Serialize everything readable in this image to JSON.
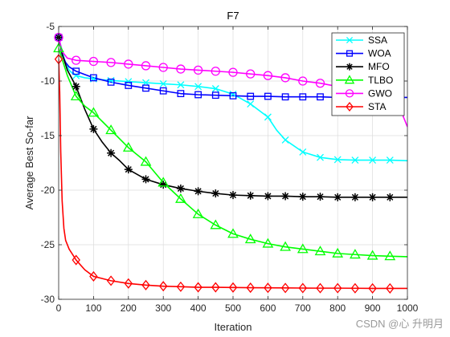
{
  "chart_data": {
    "type": "line",
    "title": "F7",
    "xlabel": "Iteration",
    "ylabel": "Average Best So-far",
    "xlim": [
      0,
      1000
    ],
    "ylim": [
      -30,
      -5
    ],
    "xticks": [
      0,
      100,
      200,
      300,
      400,
      500,
      600,
      700,
      800,
      900,
      1000
    ],
    "yticks": [
      -5,
      -10,
      -15,
      -20,
      -25,
      -30
    ],
    "grid": true,
    "legend_position": "top-right",
    "series": [
      {
        "name": "SSA",
        "color": "#00ffff",
        "marker": "x",
        "x": [
          0,
          10,
          20,
          30,
          40,
          50,
          75,
          100,
          150,
          200,
          250,
          300,
          350,
          400,
          450,
          500,
          550,
          600,
          625,
          650,
          700,
          750,
          800,
          850,
          900,
          950,
          1000
        ],
        "y": [
          -6.0,
          -7.2,
          -8.4,
          -9.0,
          -9.3,
          -9.5,
          -9.7,
          -9.8,
          -9.95,
          -10.05,
          -10.15,
          -10.25,
          -10.35,
          -10.5,
          -10.7,
          -11.2,
          -12.1,
          -13.3,
          -14.5,
          -15.4,
          -16.5,
          -17.0,
          -17.2,
          -17.25,
          -17.25,
          -17.25,
          -17.3
        ],
        "markers_x": [
          0,
          50,
          100,
          150,
          200,
          250,
          300,
          350,
          400,
          450,
          500,
          550,
          600,
          650,
          700,
          750,
          800,
          850,
          900,
          950
        ]
      },
      {
        "name": "WOA",
        "color": "#0000ff",
        "marker": "square",
        "x": [
          0,
          10,
          20,
          30,
          50,
          75,
          100,
          150,
          200,
          250,
          300,
          350,
          400,
          450,
          500,
          550,
          600,
          650,
          700,
          750,
          800,
          850,
          900,
          950,
          1000
        ],
        "y": [
          -6.0,
          -7.6,
          -8.3,
          -8.7,
          -9.1,
          -9.4,
          -9.7,
          -10.1,
          -10.4,
          -10.65,
          -10.9,
          -11.15,
          -11.25,
          -11.3,
          -11.35,
          -11.4,
          -11.4,
          -11.45,
          -11.45,
          -11.45,
          -11.5,
          -11.5,
          -11.5,
          -11.5,
          -11.5
        ],
        "markers_x": [
          0,
          50,
          100,
          150,
          200,
          250,
          300,
          350,
          400,
          450,
          500,
          550,
          600,
          650,
          700,
          750
        ]
      },
      {
        "name": "MFO",
        "color": "#000000",
        "marker": "star",
        "x": [
          0,
          10,
          25,
          50,
          75,
          100,
          125,
          150,
          175,
          200,
          250,
          300,
          350,
          400,
          450,
          500,
          550,
          600,
          650,
          700,
          750,
          800,
          850,
          900,
          950,
          1000
        ],
        "y": [
          -6.0,
          -7.5,
          -9.0,
          -10.5,
          -12.6,
          -14.4,
          -15.6,
          -16.6,
          -17.3,
          -18.1,
          -19.0,
          -19.5,
          -19.85,
          -20.1,
          -20.3,
          -20.45,
          -20.5,
          -20.55,
          -20.55,
          -20.6,
          -20.6,
          -20.65,
          -20.65,
          -20.65,
          -20.65,
          -20.65
        ],
        "markers_x": [
          0,
          50,
          100,
          150,
          200,
          250,
          300,
          350,
          400,
          450,
          500,
          550,
          600,
          650,
          700,
          750,
          800,
          850,
          900,
          950
        ]
      },
      {
        "name": "TLBO",
        "color": "#00ff00",
        "marker": "triangle",
        "x": [
          0,
          10,
          25,
          50,
          75,
          100,
          150,
          200,
          250,
          300,
          350,
          400,
          450,
          500,
          550,
          600,
          650,
          700,
          750,
          800,
          850,
          900,
          950,
          1000
        ],
        "y": [
          -7.0,
          -8.0,
          -9.5,
          -11.4,
          -12.3,
          -12.9,
          -14.5,
          -16.1,
          -17.4,
          -19.3,
          -20.8,
          -22.2,
          -23.2,
          -24.0,
          -24.5,
          -24.9,
          -25.2,
          -25.4,
          -25.6,
          -25.8,
          -25.9,
          -26.0,
          -26.05,
          -26.1
        ],
        "markers_x": [
          0,
          50,
          100,
          150,
          200,
          250,
          300,
          350,
          400,
          450,
          500,
          550,
          600,
          650,
          700,
          750,
          800,
          850,
          900,
          950
        ]
      },
      {
        "name": "GWO",
        "color": "#ff00ff",
        "marker": "circle",
        "x": [
          0,
          10,
          25,
          50,
          100,
          150,
          200,
          250,
          300,
          350,
          400,
          450,
          500,
          550,
          600,
          650,
          700,
          750,
          800,
          850,
          900,
          950,
          980,
          1000
        ],
        "y": [
          -6.0,
          -7.3,
          -7.9,
          -8.1,
          -8.2,
          -8.3,
          -8.45,
          -8.6,
          -8.75,
          -8.9,
          -9.0,
          -9.1,
          -9.2,
          -9.35,
          -9.5,
          -9.7,
          -10.0,
          -10.2,
          -10.5,
          -10.8,
          -11.2,
          -11.6,
          -12.6,
          -14.2
        ],
        "markers_x": [
          0,
          50,
          100,
          150,
          200,
          250,
          300,
          350,
          400,
          450,
          500,
          550,
          600,
          650,
          700,
          750
        ]
      },
      {
        "name": "STA",
        "color": "#ff0000",
        "marker": "diamond",
        "x": [
          0,
          3,
          6,
          10,
          15,
          20,
          30,
          40,
          50,
          75,
          100,
          150,
          200,
          250,
          300,
          350,
          400,
          450,
          500,
          550,
          600,
          650,
          700,
          750,
          800,
          850,
          900,
          950,
          1000
        ],
        "y": [
          -8.0,
          -11.0,
          -16.5,
          -21.0,
          -23.5,
          -24.6,
          -25.4,
          -25.9,
          -26.4,
          -27.3,
          -27.9,
          -28.3,
          -28.55,
          -28.7,
          -28.8,
          -28.85,
          -28.9,
          -28.9,
          -28.92,
          -28.94,
          -28.95,
          -28.96,
          -28.97,
          -28.98,
          -28.98,
          -28.99,
          -29.0,
          -29.0,
          -29.0
        ],
        "markers_x": [
          0,
          50,
          100,
          150,
          200,
          250,
          300,
          350,
          400,
          450,
          500,
          550,
          600,
          650,
          700,
          750,
          800,
          850,
          900,
          950
        ]
      }
    ]
  },
  "watermark": "CSDN @心 升明月"
}
